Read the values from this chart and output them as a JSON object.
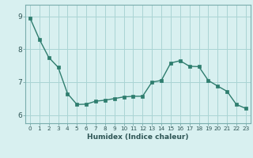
{
  "x": [
    0,
    1,
    2,
    3,
    4,
    5,
    6,
    7,
    8,
    9,
    10,
    11,
    12,
    13,
    14,
    15,
    16,
    17,
    18,
    19,
    20,
    21,
    22,
    23
  ],
  "y": [
    8.95,
    8.3,
    7.75,
    7.45,
    6.65,
    6.32,
    6.33,
    6.42,
    6.45,
    6.5,
    6.55,
    6.57,
    6.57,
    7.0,
    7.05,
    7.58,
    7.65,
    7.48,
    7.47,
    7.05,
    6.88,
    6.72,
    6.32,
    6.2
  ],
  "line_color": "#2e7d6e",
  "marker_color": "#2e7d6e",
  "bg_color": "#d8f0f0",
  "grid_color": "#aad4d4",
  "xlabel": "Humidex (Indice chaleur)",
  "ylim_min": 5.75,
  "ylim_max": 9.35,
  "yticks": [
    6,
    7,
    8,
    9
  ],
  "xticks": [
    0,
    1,
    2,
    3,
    4,
    5,
    6,
    7,
    8,
    9,
    10,
    11,
    12,
    13,
    14,
    15,
    16,
    17,
    18,
    19,
    20,
    21,
    22,
    23
  ]
}
